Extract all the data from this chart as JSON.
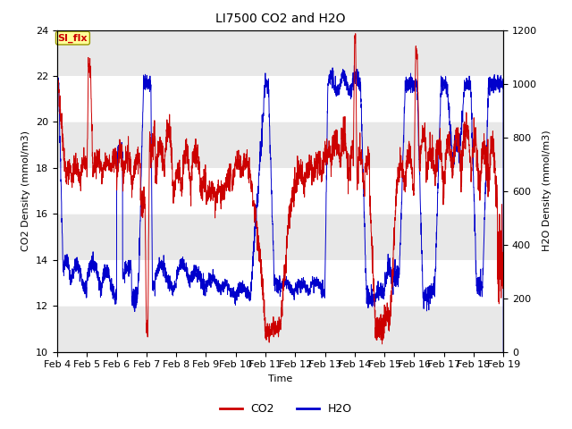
{
  "title": "LI7500 CO2 and H2O",
  "xlabel": "Time",
  "ylabel_left": "CO2 Density (mmol/m3)",
  "ylabel_right": "H2O Density (mmol/m3)",
  "ylim_left": [
    10,
    24
  ],
  "ylim_right": [
    0,
    1200
  ],
  "yticks_left": [
    10,
    12,
    14,
    16,
    18,
    20,
    22,
    24
  ],
  "yticks_right": [
    0,
    200,
    400,
    600,
    800,
    1000,
    1200
  ],
  "color_co2": "#cc0000",
  "color_h2o": "#0000cc",
  "annotation_text": "SI_flx",
  "annotation_color": "#cc0000",
  "annotation_bg": "#ffff99",
  "background_color": "#ffffff",
  "band_color": "#e8e8e8",
  "legend_co2": "CO2",
  "legend_h2o": "H2O",
  "n_points": 3000,
  "x_start": 4.0,
  "x_end": 19.0,
  "xtick_positions": [
    4,
    5,
    6,
    7,
    8,
    9,
    10,
    11,
    12,
    13,
    14,
    15,
    16,
    17,
    18,
    19
  ],
  "xtick_labels": [
    "Feb 4",
    "Feb 5",
    "Feb 6",
    "Feb 7",
    "Feb 8",
    "Feb 9",
    "Feb 10",
    "Feb 11",
    "Feb 12",
    "Feb 13",
    "Feb 14",
    "Feb 15",
    "Feb 16",
    "Feb 17",
    "Feb 18",
    "Feb 19"
  ]
}
